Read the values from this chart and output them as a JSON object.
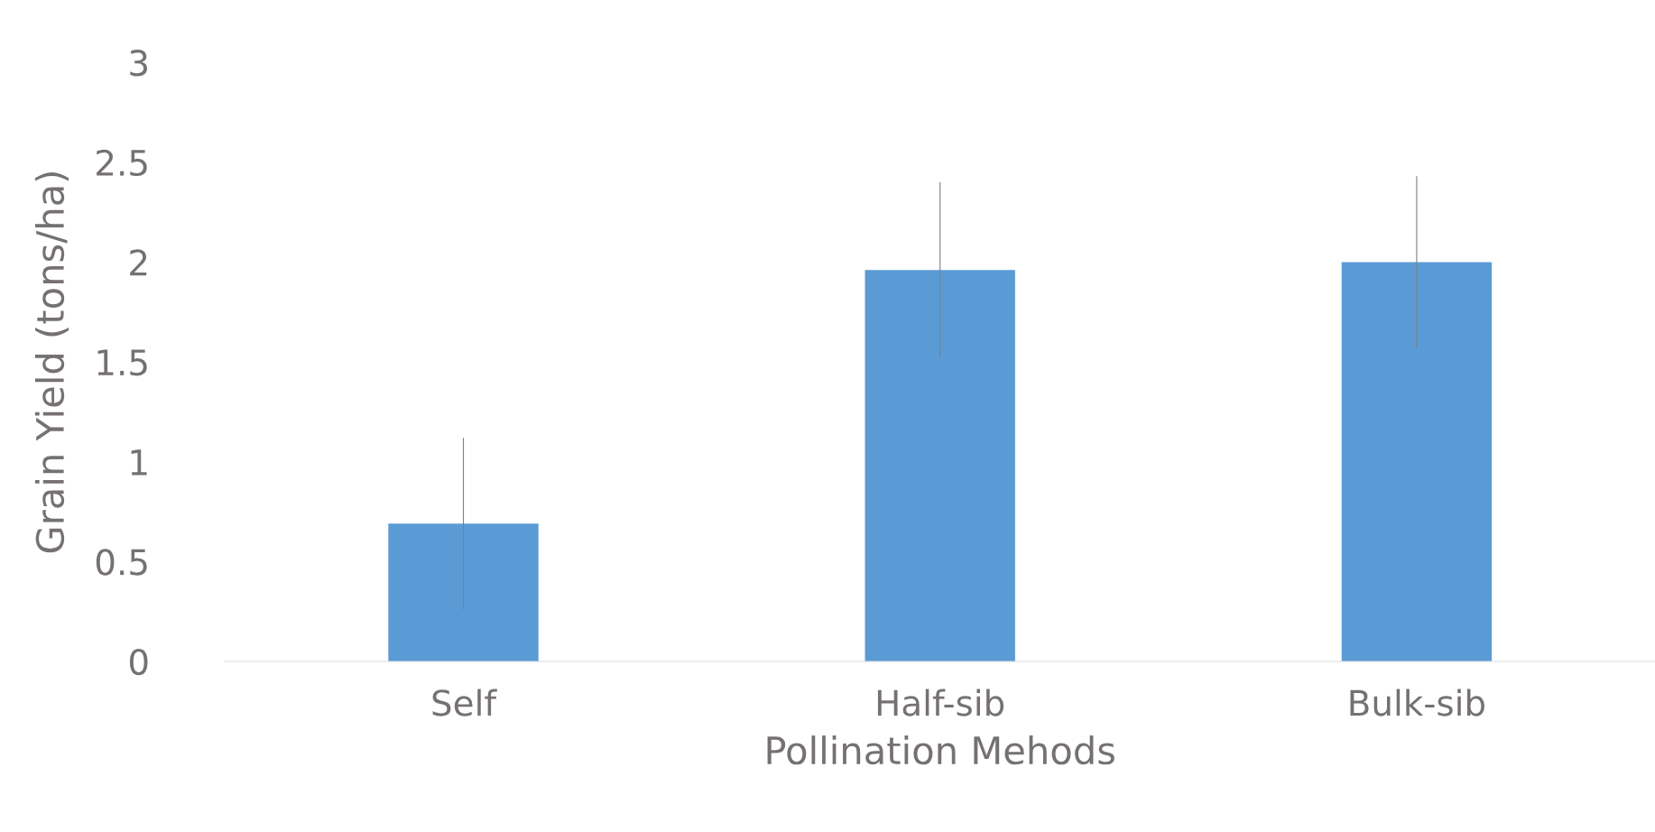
{
  "chart_data": {
    "type": "bar",
    "xlabel": "Pollination Mehods",
    "ylabel": "Grain Yield (tons/ha)",
    "categories": [
      "Self",
      "Half-sib",
      "Bulk-sib"
    ],
    "values": [
      0.69,
      1.96,
      2.0
    ],
    "errors": [
      0.43,
      0.44,
      0.43
    ],
    "color": "#5b9bd5",
    "ylim": [
      0,
      3
    ],
    "yticks": [
      0,
      0.5,
      1,
      1.5,
      2,
      2.5,
      3
    ],
    "grid": false
  }
}
